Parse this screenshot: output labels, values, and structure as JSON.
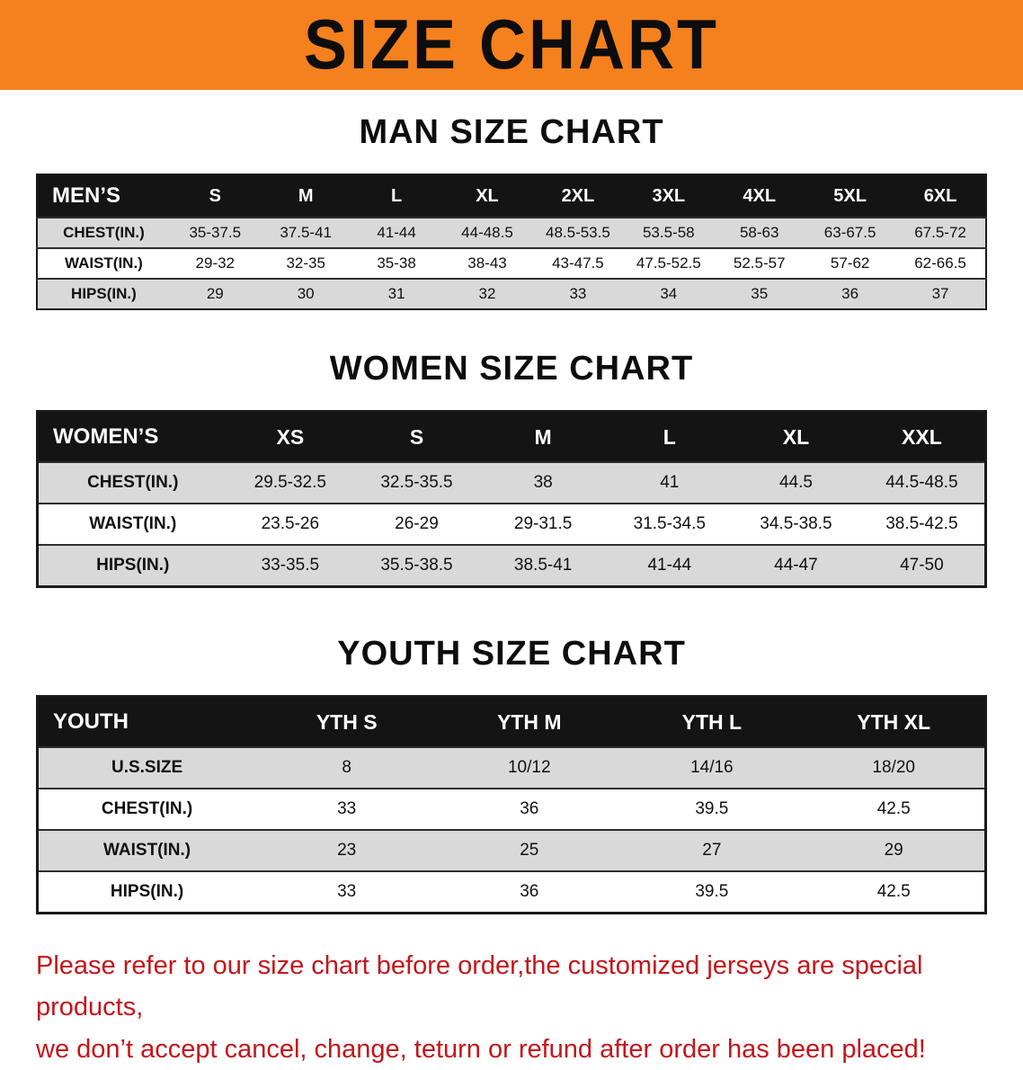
{
  "banner": {
    "title": "SIZE CHART"
  },
  "colors": {
    "banner_bg": "#f5801e",
    "header_bg": "#141414",
    "row_alt": "#d9d9d9",
    "disclaimer": "#c3161c"
  },
  "sections": {
    "men": {
      "heading": "MAN SIZE CHART",
      "table": {
        "header": [
          "MEN’S",
          "S",
          "M",
          "L",
          "XL",
          "2XL",
          "3XL",
          "4XL",
          "5XL",
          "6XL"
        ],
        "rows": [
          [
            "CHEST(IN.)",
            "35-37.5",
            "37.5-41",
            "41-44",
            "44-48.5",
            "48.5-53.5",
            "53.5-58",
            "58-63",
            "63-67.5",
            "67.5-72"
          ],
          [
            "WAIST(IN.)",
            "29-32",
            "32-35",
            "35-38",
            "38-43",
            "43-47.5",
            "47.5-52.5",
            "52.5-57",
            "57-62",
            "62-66.5"
          ],
          [
            "HIPS(IN.)",
            "29",
            "30",
            "31",
            "32",
            "33",
            "34",
            "35",
            "36",
            "37"
          ]
        ]
      }
    },
    "women": {
      "heading": "WOMEN SIZE CHART",
      "table": {
        "header": [
          "WOMEN’S",
          "XS",
          "S",
          "M",
          "L",
          "XL",
          "XXL"
        ],
        "rows": [
          [
            "CHEST(IN.)",
            "29.5-32.5",
            "32.5-35.5",
            "38",
            "41",
            "44.5",
            "44.5-48.5"
          ],
          [
            "WAIST(IN.)",
            "23.5-26",
            "26-29",
            "29-31.5",
            "31.5-34.5",
            "34.5-38.5",
            "38.5-42.5"
          ],
          [
            "HIPS(IN.)",
            "33-35.5",
            "35.5-38.5",
            "38.5-41",
            "41-44",
            "44-47",
            "47-50"
          ]
        ]
      }
    },
    "youth": {
      "heading": "YOUTH SIZE CHART",
      "table": {
        "header": [
          "YOUTH",
          "YTH S",
          "YTH M",
          "YTH L",
          "YTH XL"
        ],
        "rows": [
          [
            "U.S.SIZE",
            "8",
            "10/12",
            "14/16",
            "18/20"
          ],
          [
            "CHEST(IN.)",
            "33",
            "36",
            "39.5",
            "42.5"
          ],
          [
            "WAIST(IN.)",
            "23",
            "25",
            "27",
            "29"
          ],
          [
            "HIPS(IN.)",
            "33",
            "36",
            "39.5",
            "42.5"
          ]
        ]
      }
    }
  },
  "disclaimer": {
    "line1": "Please refer to our size chart before order,the customized jerseys are special products,",
    "line2": "we don’t accept cancel, change, teturn or refund after order has been placed!"
  }
}
